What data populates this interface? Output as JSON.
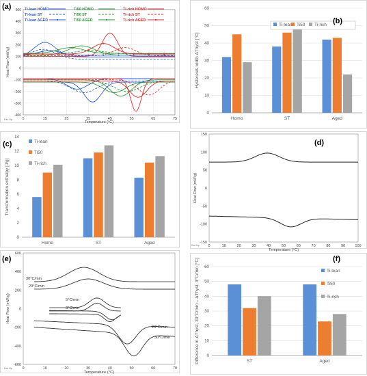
{
  "figure": {
    "panel_letters": [
      "(a)",
      "(b)",
      "(c)",
      "(d)",
      "(e)",
      "(f)"
    ],
    "exo_note": "Exo Up",
    "colors": {
      "ti_lean": "#5b8fd6",
      "ti50": "#ed7d31",
      "ti_rich": "#a5a5a5",
      "dsc_blue": "#2f5fd0",
      "dsc_green": "#2e9a3a",
      "dsc_red": "#e03030",
      "dsc_black": "#222222",
      "grid": "#d9d9d9",
      "panel_border": "#bfbfbf"
    }
  },
  "chart_data": [
    {
      "id": "a",
      "type": "line",
      "xlabel": "Temperature (°C)",
      "ylabel": "Heat Flow (mW/g)",
      "xlim": [
        5,
        75
      ],
      "ylim": [
        -400,
        500
      ],
      "xticks": [
        5,
        15,
        25,
        35,
        45,
        55,
        65,
        75
      ],
      "yticks": [
        -400,
        -300,
        -200,
        -100,
        0,
        100,
        200,
        300,
        400,
        500
      ],
      "grid": true,
      "legend": [
        "Ti-lean HOMO",
        "Ti50 HOMO",
        "Ti-rich HOMO",
        "Ti-lean ST",
        "Ti50 ST",
        "Ti-rich ST",
        "Ti-lean AGED",
        "Ti50 AGED",
        "Ti-rich AGED"
      ],
      "series": [
        {
          "name": "Ti-lean HOMO",
          "color": "#2f5fd0",
          "dash": "solid",
          "cool_base": 95,
          "cool_peak": 220,
          "cool_at": 15,
          "cool_width": 5,
          "heat_base": -90,
          "heat_peak": -180,
          "heat_at": 30,
          "heat_width": 5
        },
        {
          "name": "Ti50 HOMO",
          "color": "#2e9a3a",
          "dash": "solid",
          "cool_base": 110,
          "cool_peak": 190,
          "cool_at": 32,
          "cool_width": 6,
          "heat_base": -100,
          "heat_peak": -240,
          "heat_at": 50,
          "heat_width": 5
        },
        {
          "name": "Ti-rich HOMO",
          "color": "#e03030",
          "dash": "solid",
          "cool_base": 100,
          "cool_peak": 300,
          "cool_at": 45,
          "cool_width": 3.5,
          "heat_base": -90,
          "heat_peak": -370,
          "heat_at": 57,
          "heat_width": 2.5
        },
        {
          "name": "Ti-lean ST",
          "color": "#2f5fd0",
          "dash": "dash",
          "cool_base": 75,
          "cool_peak": 160,
          "cool_at": 14,
          "cool_width": 6,
          "heat_base": -110,
          "heat_peak": -210,
          "heat_at": 33,
          "heat_width": 6
        },
        {
          "name": "Ti50 ST",
          "color": "#2e9a3a",
          "dash": "dash",
          "cool_base": 120,
          "cool_peak": 150,
          "cool_at": 36,
          "cool_width": 7,
          "heat_base": -110,
          "heat_peak": -200,
          "heat_at": 53,
          "heat_width": 6
        },
        {
          "name": "Ti-rich ST",
          "color": "#e03030",
          "dash": "dash",
          "cool_base": 105,
          "cool_peak": 175,
          "cool_at": 52,
          "cool_width": 5,
          "heat_base": -100,
          "heat_peak": -230,
          "heat_at": 63,
          "heat_width": 5
        },
        {
          "name": "Ti-lean AGED",
          "color": "#2f5fd0",
          "dash": "marker",
          "cool_base": 110,
          "cool_peak": 150,
          "cool_at": 17,
          "cool_width": 5,
          "heat_base": -120,
          "heat_peak": -290,
          "heat_at": 37,
          "heat_width": 4
        },
        {
          "name": "Ti50 AGED",
          "color": "#2e9a3a",
          "dash": "marker",
          "cool_base": 125,
          "cool_peak": 175,
          "cool_at": 27,
          "cool_width": 6,
          "heat_base": -120,
          "heat_peak": -210,
          "heat_at": 47,
          "heat_width": 5
        },
        {
          "name": "Ti-rich AGED",
          "color": "#e03030",
          "dash": "marker",
          "cool_base": 120,
          "cool_peak": 210,
          "cool_at": 42,
          "cool_width": 5,
          "heat_base": -110,
          "heat_peak": -250,
          "heat_at": 58,
          "heat_width": 4
        }
      ],
      "hline": 0
    },
    {
      "id": "b",
      "type": "bar",
      "categories": [
        "Homo",
        "ST",
        "Aged"
      ],
      "ylabel": "Hysteresis width ΔT_{hyst} [°C]",
      "ylim": [
        0,
        60
      ],
      "yticks": [
        0,
        10,
        20,
        30,
        40,
        50,
        60
      ],
      "grid": true,
      "legend_position": "top-right",
      "series": [
        {
          "name": "Ti-lean",
          "values": [
            32,
            38,
            42
          ]
        },
        {
          "name": "Ti50",
          "values": [
            45,
            46,
            43
          ]
        },
        {
          "name": "Ti-rich",
          "values": [
            29,
            52,
            22
          ]
        }
      ]
    },
    {
      "id": "c",
      "type": "bar",
      "categories": [
        "Homo",
        "ST",
        "Aged"
      ],
      "ylabel": "Transformation enthalpy [J/g]",
      "ylim": [
        0,
        14
      ],
      "yticks": [
        0,
        2,
        4,
        6,
        8,
        10,
        12,
        14
      ],
      "grid": false,
      "legend_position": "top-left",
      "series": [
        {
          "name": "Ti-lean",
          "values": [
            5.6,
            11.0,
            8.3
          ]
        },
        {
          "name": "Ti50",
          "values": [
            9.0,
            11.8,
            10.4
          ]
        },
        {
          "name": "Ti-rich",
          "values": [
            10.1,
            12.8,
            11.3
          ]
        }
      ]
    },
    {
      "id": "d",
      "type": "line",
      "xlabel": "Temperature (°C)",
      "ylabel": "Heat Flow (mW/g)",
      "xlim": [
        0,
        100
      ],
      "ylim": [
        -150,
        150
      ],
      "xticks": [
        0,
        10,
        20,
        30,
        40,
        50,
        60,
        70,
        80,
        90,
        100
      ],
      "yticks": [
        -150,
        -100,
        -50,
        0,
        50,
        100,
        150
      ],
      "grid": false,
      "series": [
        {
          "name": "",
          "color": "#222222",
          "base_start": 72,
          "base_end": 72,
          "peak": 97,
          "peak_at": 39,
          "width": 8
        },
        {
          "name": "",
          "color": "#222222",
          "base_start": -78,
          "base_end": -88,
          "peak": -108,
          "peak_at": 55,
          "width": 7
        }
      ]
    },
    {
      "id": "e",
      "type": "line",
      "xlabel": "Temperature (°C)",
      "ylabel": "Heat Flow (mW/g)",
      "xlim": [
        0,
        70
      ],
      "ylim": [
        -600,
        600
      ],
      "xticks": [
        0,
        10,
        20,
        30,
        40,
        50,
        60,
        70
      ],
      "yticks": [
        -600,
        -400,
        -200,
        0,
        200,
        400,
        600
      ],
      "grid": false,
      "annotations": [
        "30°C/min",
        "20°C/min",
        "5°C/min",
        "3°C/min",
        "20°C/min",
        "30°C/min"
      ],
      "series": [
        {
          "name": "30°C/min",
          "color": "#333333",
          "x_start": 5,
          "x_end": 70,
          "cool_base": 290,
          "cool_peak": 445,
          "cool_at": 28,
          "cool_width": 7,
          "heat_base": -200,
          "heat_base_end": -300,
          "heat_peak": -510,
          "heat_at": 51,
          "heat_width": 4
        },
        {
          "name": "20°C/min",
          "color": "#333333",
          "x_start": 5,
          "x_end": 70,
          "cool_base": 210,
          "cool_peak": 320,
          "cool_at": 30,
          "cool_width": 7,
          "heat_base": -130,
          "heat_base_end": -200,
          "heat_peak": -380,
          "heat_at": 48,
          "heat_width": 4
        },
        {
          "name": "5°C/min",
          "color": "#333333",
          "x_start": 12,
          "x_end": 45,
          "cool_base": 10,
          "cool_peak": 115,
          "cool_at": 34,
          "cool_width": 3.5,
          "heat_base": -20,
          "heat_base_end": -30,
          "heat_peak": -120,
          "heat_at": 41,
          "heat_width": 3
        },
        {
          "name": "3°C/min",
          "color": "#333333",
          "x_start": 12,
          "x_end": 45,
          "cool_base": -25,
          "cool_peak": 60,
          "cool_at": 34,
          "cool_width": 3,
          "heat_base": -55,
          "heat_base_end": -60,
          "heat_peak": -140,
          "heat_at": 40,
          "heat_width": 2.5
        }
      ]
    },
    {
      "id": "f",
      "type": "bar",
      "categories": [
        "ST",
        "Aged"
      ],
      "ylabel": "Difference in ΔT_{hyst, 30°C/min} – ΔT_{hyst, 3°C/min} [°C]",
      "ylim": [
        0,
        60
      ],
      "yticks": [
        0,
        10,
        20,
        30,
        40,
        50,
        60
      ],
      "grid": true,
      "legend_position": "top-right",
      "series": [
        {
          "name": "Ti-lean",
          "values": [
            48,
            48
          ]
        },
        {
          "name": "Ti50",
          "values": [
            32,
            23
          ]
        },
        {
          "name": "Ti-rich",
          "values": [
            40,
            28
          ]
        }
      ]
    }
  ]
}
